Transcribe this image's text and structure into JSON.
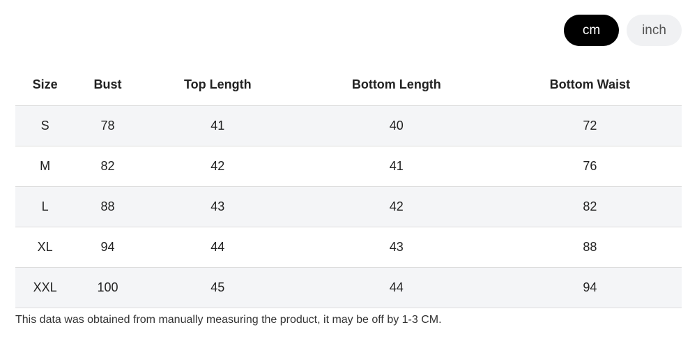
{
  "toggle": {
    "options": [
      "cm",
      "inch"
    ]
  },
  "table": {
    "header": [
      "Size",
      "Bust",
      "Top Length",
      "Bottom Length",
      "Bottom Waist"
    ],
    "rows": [
      [
        "S",
        "78",
        "41",
        "40",
        "72"
      ],
      [
        "M",
        "82",
        "42",
        "41",
        "76"
      ],
      [
        "L",
        "88",
        "43",
        "42",
        "82"
      ],
      [
        "XL",
        "94",
        "44",
        "43",
        "88"
      ],
      [
        "XXL",
        "100",
        "45",
        "44",
        "94"
      ]
    ]
  },
  "note": "This data was obtained from manually measuring the product, it may be off by 1-3 CM."
}
